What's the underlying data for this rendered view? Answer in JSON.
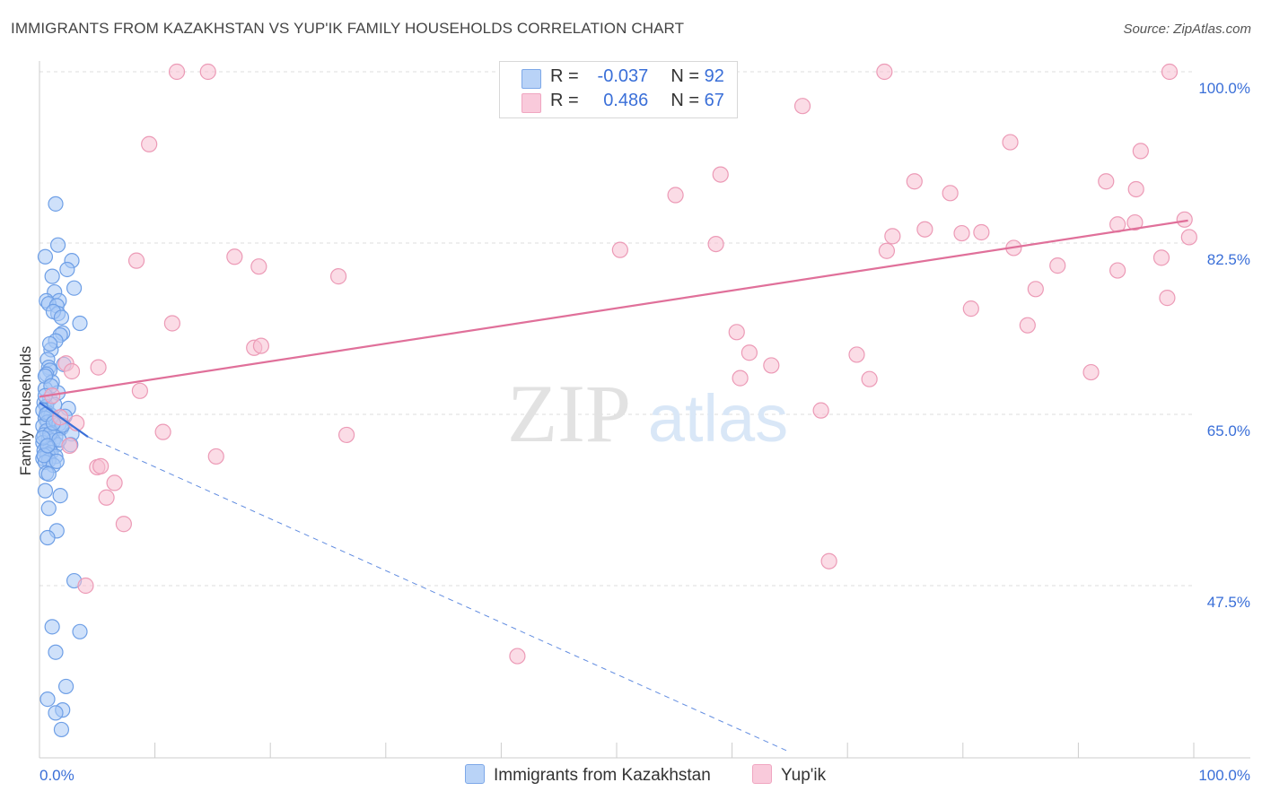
{
  "title": "IMMIGRANTS FROM KAZAKHSTAN VS YUP'IK FAMILY HOUSEHOLDS CORRELATION CHART",
  "source": "Source: ZipAtlas.com",
  "watermark": {
    "zip": "ZIP",
    "atlas": "atlas"
  },
  "legend_top": [
    {
      "r_label": "R =",
      "r_value": "-0.037",
      "n_label": "N =",
      "n_value": "92"
    },
    {
      "r_label": "R =",
      "r_value": "0.486",
      "n_label": "N =",
      "n_value": "67"
    }
  ],
  "chart_data": {
    "type": "scatter",
    "title": "IMMIGRANTS FROM KAZAKHSTAN VS YUP'IK FAMILY HOUSEHOLDS CORRELATION CHART",
    "xlabel": "",
    "ylabel": "Family Households",
    "xlim": [
      0,
      100
    ],
    "ylim": [
      30,
      102
    ],
    "x_tick_labels": [
      "0.0%",
      "100.0%"
    ],
    "y_ticks": [
      47.5,
      65.0,
      82.5,
      100.0
    ],
    "y_tick_labels": [
      "47.5%",
      "65.0%",
      "82.5%",
      "100.0%"
    ],
    "grid": true,
    "legend_position": "bottom-center",
    "colors": {
      "kaz_fill": "#a8c8f5",
      "kaz_stroke": "#6e9fe6",
      "kaz_line": "#3a6fd8",
      "yup_fill": "#f8c0d2",
      "yup_stroke": "#ec9ab6",
      "yup_line": "#e0709a",
      "tick_label": "#3a6fd8",
      "grid": "#dddddd"
    },
    "series": [
      {
        "name": "Immigrants from Kazakhstan",
        "R": -0.037,
        "N": 92,
        "trend": {
          "x": [
            0,
            4.2
          ],
          "y": [
            66.2,
            62.7
          ]
        },
        "trend_extension": {
          "x": [
            4.2,
            65
          ],
          "y": [
            62.7,
            30.5
          ]
        },
        "points": [
          [
            1.4,
            86.5
          ],
          [
            1.6,
            82.3
          ],
          [
            0.5,
            81.1
          ],
          [
            2.8,
            80.7
          ],
          [
            2.4,
            79.8
          ],
          [
            1.1,
            79.1
          ],
          [
            3.0,
            77.9
          ],
          [
            1.3,
            77.5
          ],
          [
            0.6,
            76.6
          ],
          [
            1.7,
            76.6
          ],
          [
            0.8,
            76.3
          ],
          [
            1.5,
            76.1
          ],
          [
            1.6,
            75.3
          ],
          [
            1.2,
            75.5
          ],
          [
            1.9,
            74.9
          ],
          [
            3.5,
            74.3
          ],
          [
            2.0,
            73.3
          ],
          [
            1.8,
            73.1
          ],
          [
            1.4,
            72.5
          ],
          [
            1.0,
            71.6
          ],
          [
            0.7,
            70.6
          ],
          [
            0.8,
            69.8
          ],
          [
            0.9,
            69.5
          ],
          [
            0.6,
            69.1
          ],
          [
            1.1,
            68.3
          ],
          [
            0.5,
            67.6
          ],
          [
            0.9,
            66.6
          ],
          [
            0.4,
            66.2
          ],
          [
            0.6,
            65.8
          ],
          [
            0.3,
            65.4
          ],
          [
            0.8,
            65.1
          ],
          [
            1.0,
            64.9
          ],
          [
            0.5,
            64.6
          ],
          [
            1.3,
            64.4
          ],
          [
            0.7,
            64.2
          ],
          [
            1.7,
            64.0
          ],
          [
            0.3,
            63.8
          ],
          [
            1.9,
            63.6
          ],
          [
            0.6,
            63.3
          ],
          [
            1.1,
            63.1
          ],
          [
            0.4,
            62.9
          ],
          [
            1.4,
            62.7
          ],
          [
            0.8,
            62.5
          ],
          [
            1.2,
            62.3
          ],
          [
            0.3,
            62.1
          ],
          [
            1.5,
            61.9
          ],
          [
            0.6,
            61.7
          ],
          [
            0.9,
            61.5
          ],
          [
            0.4,
            61.3
          ],
          [
            1.0,
            61.1
          ],
          [
            0.7,
            60.9
          ],
          [
            1.4,
            60.7
          ],
          [
            0.3,
            60.5
          ],
          [
            0.8,
            60.3
          ],
          [
            0.5,
            60.1
          ],
          [
            1.2,
            59.8
          ],
          [
            2.8,
            63.0
          ],
          [
            2.7,
            61.9
          ],
          [
            0.6,
            59.0
          ],
          [
            0.5,
            57.2
          ],
          [
            1.8,
            56.7
          ],
          [
            0.8,
            55.4
          ],
          [
            1.5,
            53.1
          ],
          [
            0.7,
            52.4
          ],
          [
            3.0,
            48.0
          ],
          [
            1.1,
            43.3
          ],
          [
            3.5,
            42.8
          ],
          [
            1.4,
            40.7
          ],
          [
            2.3,
            37.2
          ],
          [
            0.7,
            35.9
          ],
          [
            2.0,
            34.8
          ],
          [
            1.4,
            34.5
          ],
          [
            1.9,
            32.8
          ],
          [
            0.9,
            72.2
          ],
          [
            2.1,
            70.1
          ],
          [
            0.5,
            68.9
          ],
          [
            1.6,
            67.2
          ],
          [
            2.5,
            65.6
          ],
          [
            1.3,
            66.0
          ],
          [
            0.9,
            63.0
          ],
          [
            0.4,
            60.8
          ],
          [
            1.7,
            62.4
          ],
          [
            2.2,
            64.8
          ],
          [
            0.6,
            65.0
          ],
          [
            1.0,
            67.9
          ],
          [
            0.3,
            62.6
          ],
          [
            1.5,
            60.2
          ],
          [
            2.0,
            63.9
          ],
          [
            0.7,
            61.8
          ],
          [
            1.2,
            64.1
          ],
          [
            0.5,
            66.9
          ],
          [
            0.8,
            58.9
          ]
        ]
      },
      {
        "name": "Yup'ik",
        "R": 0.486,
        "N": 67,
        "trend": {
          "x": [
            0,
            99.5
          ],
          "y": [
            66.8,
            84.8
          ]
        },
        "points": [
          [
            11.9,
            100.0
          ],
          [
            14.6,
            100.0
          ],
          [
            73.2,
            100.0
          ],
          [
            97.9,
            100.0
          ],
          [
            66.1,
            96.5
          ],
          [
            9.5,
            92.6
          ],
          [
            84.1,
            92.8
          ],
          [
            95.4,
            91.9
          ],
          [
            59.0,
            89.5
          ],
          [
            75.8,
            88.8
          ],
          [
            92.4,
            88.8
          ],
          [
            95.0,
            88.0
          ],
          [
            78.9,
            87.6
          ],
          [
            55.1,
            87.4
          ],
          [
            94.9,
            84.6
          ],
          [
            93.4,
            84.4
          ],
          [
            99.2,
            84.9
          ],
          [
            76.7,
            83.9
          ],
          [
            79.9,
            83.5
          ],
          [
            81.6,
            83.6
          ],
          [
            73.9,
            83.2
          ],
          [
            99.6,
            83.1
          ],
          [
            58.6,
            82.4
          ],
          [
            50.3,
            81.8
          ],
          [
            73.4,
            81.7
          ],
          [
            84.4,
            82.0
          ],
          [
            16.9,
            81.1
          ],
          [
            97.2,
            81.0
          ],
          [
            8.4,
            80.7
          ],
          [
            19.0,
            80.1
          ],
          [
            88.2,
            80.2
          ],
          [
            93.4,
            79.7
          ],
          [
            25.9,
            79.1
          ],
          [
            86.3,
            77.8
          ],
          [
            97.7,
            76.9
          ],
          [
            80.7,
            75.8
          ],
          [
            11.5,
            74.3
          ],
          [
            85.6,
            74.1
          ],
          [
            60.4,
            73.4
          ],
          [
            18.6,
            71.8
          ],
          [
            19.2,
            72.0
          ],
          [
            61.5,
            71.3
          ],
          [
            70.8,
            71.1
          ],
          [
            2.3,
            70.2
          ],
          [
            5.1,
            69.8
          ],
          [
            63.4,
            70.0
          ],
          [
            91.1,
            69.3
          ],
          [
            2.8,
            69.4
          ],
          [
            60.7,
            68.7
          ],
          [
            71.9,
            68.6
          ],
          [
            8.7,
            67.4
          ],
          [
            1.1,
            66.9
          ],
          [
            67.7,
            65.4
          ],
          [
            1.8,
            64.7
          ],
          [
            3.2,
            64.1
          ],
          [
            10.7,
            63.2
          ],
          [
            26.6,
            62.9
          ],
          [
            15.3,
            60.7
          ],
          [
            5.0,
            59.6
          ],
          [
            5.3,
            59.7
          ],
          [
            6.5,
            58.0
          ],
          [
            5.8,
            56.5
          ],
          [
            7.3,
            53.8
          ],
          [
            68.4,
            50.0
          ],
          [
            4.0,
            47.5
          ],
          [
            41.4,
            40.3
          ],
          [
            2.6,
            61.8
          ]
        ]
      }
    ]
  },
  "legend_bottom": [
    {
      "label": "Immigrants from Kazakhstan"
    },
    {
      "label": "Yup'ik"
    }
  ]
}
